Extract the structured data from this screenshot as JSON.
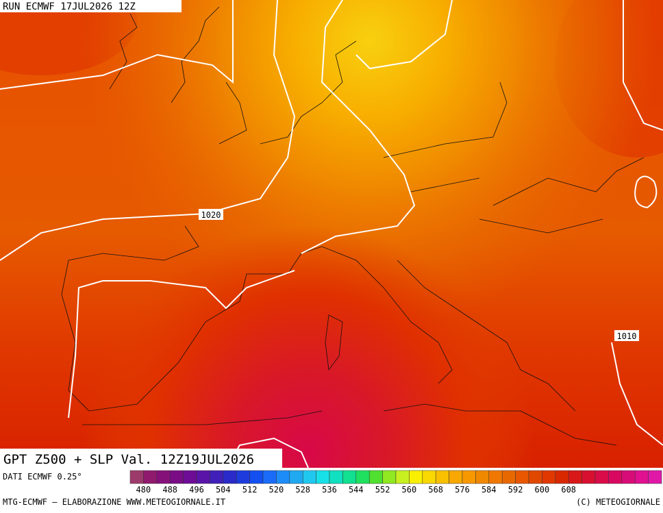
{
  "header": "RUN ECMWF 17JUL2026 12Z",
  "title": "GPT Z500 + SLP Val. 12Z19JUL2026",
  "source": "DATI ECMWF 0.25°",
  "isobar_labels": [
    "1020",
    "1010"
  ],
  "colorbar": {
    "colors": [
      "#9c3b6b",
      "#8f1a6e",
      "#86107a",
      "#7a0c86",
      "#6e0c96",
      "#5a14a8",
      "#4020b8",
      "#2a2ac8",
      "#1e3cdc",
      "#1450f0",
      "#1a6cf8",
      "#1e8cf8",
      "#20a8f0",
      "#20c8f0",
      "#18e0e8",
      "#10e0c0",
      "#10e090",
      "#20e060",
      "#50e030",
      "#90e820",
      "#c8f020",
      "#f8f000",
      "#f8d800",
      "#f8c000",
      "#f8a800",
      "#f89800",
      "#f08800",
      "#f07800",
      "#e86800",
      "#e85800",
      "#e04800",
      "#e03800",
      "#d82800",
      "#d81818",
      "#d81030",
      "#d80c48",
      "#d80860",
      "#d80c78",
      "#e01090",
      "#e018a8"
    ],
    "labels": [
      480,
      488,
      496,
      504,
      512,
      520,
      528,
      536,
      544,
      552,
      560,
      568,
      576,
      584,
      592,
      600,
      608
    ]
  },
  "footer_left": "MTG-ECMWF – ELABORAZIONE WWW.METEOGIORNALE.IT",
  "footer_right": "(C) METEOGIORNALE"
}
